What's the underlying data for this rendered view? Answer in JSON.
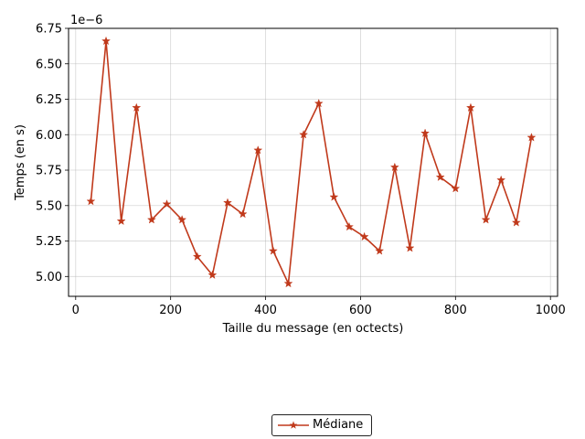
{
  "chart_data": {
    "type": "line",
    "xlabel": "Taille du message (en octects)",
    "ylabel": "Temps (en s)",
    "y_offset_text": "1e−6",
    "xlim": [
      -15,
      1015
    ],
    "ylim": [
      4.86,
      6.75
    ],
    "xticks": [
      0,
      200,
      400,
      600,
      800,
      1000
    ],
    "xtick_labels": [
      "0",
      "200",
      "400",
      "600",
      "800",
      "1000"
    ],
    "yticks": [
      5.0,
      5.25,
      5.5,
      5.75,
      6.0,
      6.25,
      6.5,
      6.75
    ],
    "ytick_labels": [
      "5.00",
      "5.25",
      "5.50",
      "5.75",
      "6.00",
      "6.25",
      "6.50",
      "6.75"
    ],
    "grid": true,
    "legend_position": "bottom-center",
    "series": [
      {
        "name": "Médiane",
        "color": "#c0391b",
        "marker": "star",
        "x": [
          32,
          64,
          96,
          128,
          160,
          192,
          224,
          256,
          288,
          320,
          352,
          384,
          416,
          448,
          480,
          512,
          544,
          576,
          608,
          640,
          672,
          704,
          736,
          768,
          800,
          832,
          864,
          896,
          928,
          960
        ],
        "y": [
          5.53,
          6.66,
          5.39,
          6.19,
          5.4,
          5.51,
          5.4,
          5.14,
          5.01,
          5.52,
          5.44,
          5.89,
          5.18,
          4.95,
          6.0,
          6.22,
          5.56,
          5.35,
          5.28,
          5.18,
          5.77,
          5.2,
          6.01,
          5.7,
          5.62,
          6.19,
          5.4,
          5.68,
          5.38,
          5.98
        ]
      }
    ]
  }
}
